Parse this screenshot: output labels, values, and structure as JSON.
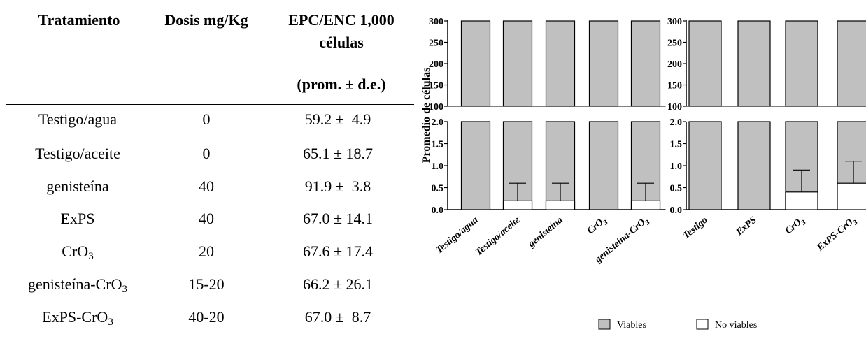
{
  "table": {
    "headers": {
      "treatment": "Tratamiento",
      "dose": "Dosis mg/Kg",
      "epc_line1": "EPC/ENC 1,000",
      "epc_line2": "células",
      "epc_line3": "(prom. ± d.e.)"
    },
    "rows": [
      {
        "name": "Testigo/agua",
        "name_sub": "",
        "name_tail": "",
        "dose": "0",
        "value": "59.2 ±  4.9"
      },
      {
        "name": "Testigo/aceite",
        "name_sub": "",
        "name_tail": "",
        "dose": "0",
        "value": "65.1 ± 18.7"
      },
      {
        "name": "genisteína",
        "name_sub": "",
        "name_tail": "",
        "dose": "40",
        "value": "91.9 ±  3.8"
      },
      {
        "name": "ExPS",
        "name_sub": "",
        "name_tail": "",
        "dose": "40",
        "value": "67.0 ± 14.1"
      },
      {
        "name": "CrO",
        "name_sub": "3",
        "name_tail": "",
        "dose": "20",
        "value": "67.6 ± 17.4"
      },
      {
        "name": "genisteína-CrO",
        "name_sub": "3",
        "name_tail": "",
        "dose": "15-20",
        "value": "66.2 ± 26.1"
      },
      {
        "name": "ExPS-CrO",
        "name_sub": "3",
        "name_tail": "",
        "dose": "40-20",
        "value": "67.0 ±  8.7"
      }
    ]
  },
  "chart_data": [
    {
      "type": "bar",
      "stacked": true,
      "broken_y_axis": true,
      "ylabel": "Promedio de células",
      "upper_ylim": [
        100,
        300
      ],
      "upper_ticks": [
        "100",
        "150",
        "200",
        "250",
        "300"
      ],
      "lower_ylim": [
        0,
        2.0
      ],
      "lower_ticks": [
        "0.0",
        "0.5",
        "1.0",
        "1.5",
        "2.0"
      ],
      "categories": [
        "Testigo/agua",
        "Testigo/aceite",
        "genisteína",
        "CrO3",
        "genisteína-CrO3"
      ],
      "series": [
        {
          "name": "Viables",
          "color": "#c0c0c0",
          "values": [
            300,
            299.8,
            299.8,
            300,
            299.8
          ]
        },
        {
          "name": "No viables",
          "color": "#ffffff",
          "values": [
            0,
            0.2,
            0.2,
            0,
            0.2
          ],
          "error_upper": [
            0,
            0.6,
            0.6,
            0,
            0.6
          ]
        }
      ]
    },
    {
      "type": "bar",
      "stacked": true,
      "broken_y_axis": true,
      "upper_ylim": [
        100,
        300
      ],
      "upper_ticks": [
        "100",
        "150",
        "200",
        "250",
        "300"
      ],
      "lower_ylim": [
        0,
        2.0
      ],
      "lower_ticks": [
        "0.0",
        "0.5",
        "1.0",
        "1.5",
        "2.0"
      ],
      "categories": [
        "Testigo",
        "ExPS",
        "CrO3",
        "ExPS-CrO3"
      ],
      "series": [
        {
          "name": "Viables",
          "color": "#c0c0c0",
          "values": [
            300,
            300,
            299.6,
            299.4
          ]
        },
        {
          "name": "No viables",
          "color": "#ffffff",
          "values": [
            0,
            0,
            0.4,
            0.6
          ],
          "error_upper": [
            0,
            0,
            0.9,
            1.1
          ]
        }
      ]
    }
  ],
  "legend": {
    "viables": "Viables",
    "no_viables": "No viables",
    "position": "bottom"
  }
}
